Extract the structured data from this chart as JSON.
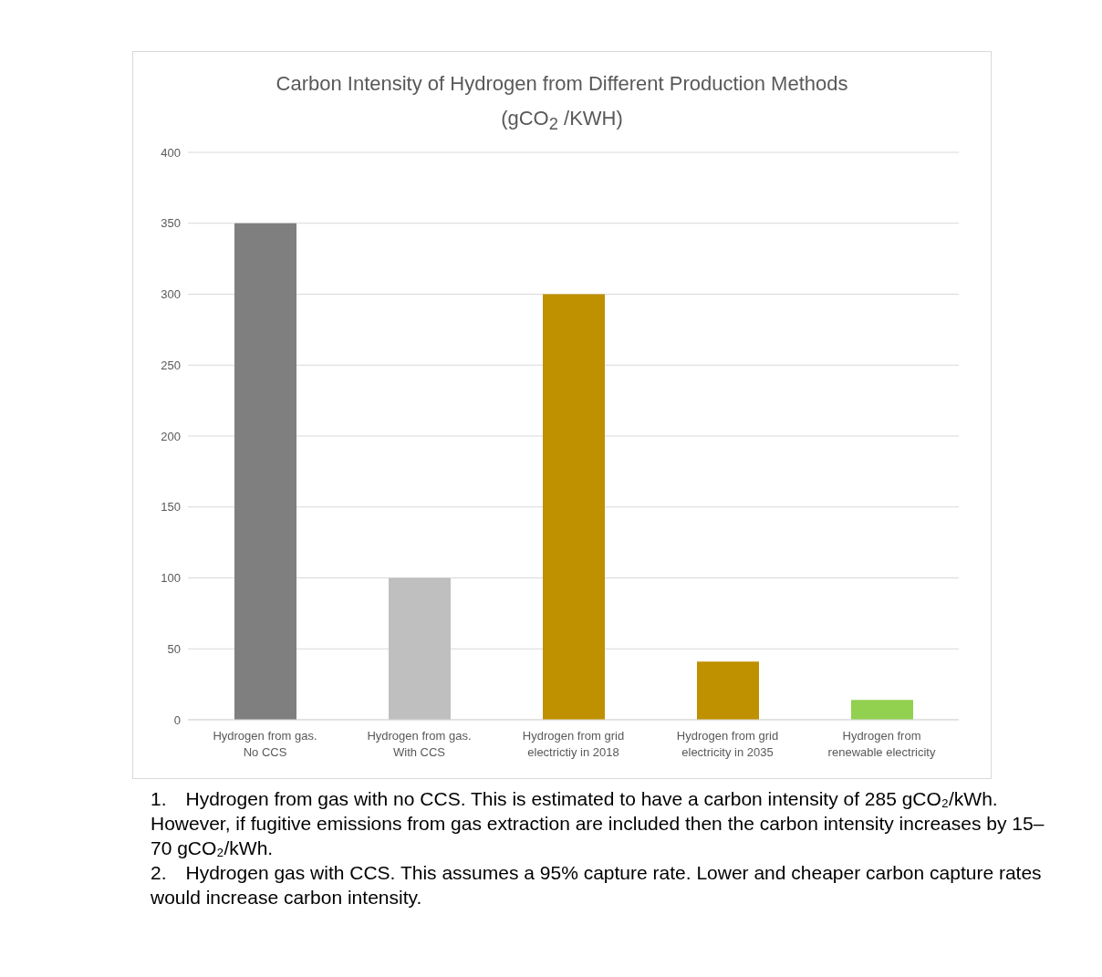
{
  "chart_data": {
    "type": "bar",
    "title": "Carbon Intensity of Hydrogen from Different Production Methods",
    "subtitle": "(gCO$_{2}$ /KWH)",
    "categories": [
      "Hydrogen from gas. No CCS",
      "Hydrogen from gas. With CCS",
      "Hydrogen from grid electrictiy in 2018",
      "Hydrogen from grid electricity in 2035",
      "Hydrogen from renewable electricity"
    ],
    "values": [
      350,
      100,
      300,
      41,
      14
    ],
    "colors": [
      "#7f7f7f",
      "#bfbfbf",
      "#bf9000",
      "#bf9000",
      "#92d050"
    ],
    "ylim": [
      0,
      400
    ],
    "yticks": [
      0,
      50,
      100,
      150,
      200,
      250,
      300,
      350,
      400
    ],
    "grid": "y",
    "legend": false,
    "annotations": [
      "1. Hydrogen from gas with no CCS. This is estimated to have a carbon intensity of 285 gCO₂/kWh. However, if fugitive emissions from gas extraction are included then the carbon intensity increases by 15–70 gCO₂/kWh.",
      "2. Hydrogen gas with CCS. This assumes a 95% capture rate. Lower and cheaper carbon capture rates would increase carbon intensity."
    ]
  }
}
